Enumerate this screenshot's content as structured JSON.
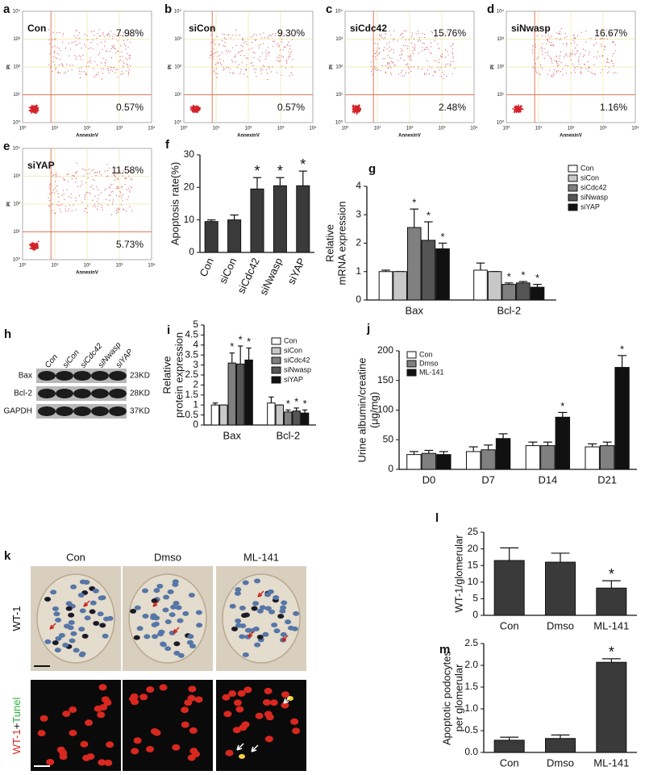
{
  "flow_cytometry": {
    "x_label": "AnnexinV",
    "y_label": "PI",
    "ticks": [
      "10⁰",
      "10¹",
      "10²",
      "10³",
      "10⁴"
    ],
    "panels": [
      {
        "panel": "a",
        "name": "Con",
        "upper_right": "7.98%",
        "lower_right": "0.57%"
      },
      {
        "panel": "b",
        "name": "siCon",
        "upper_right": "9.30%",
        "lower_right": "0.57%"
      },
      {
        "panel": "c",
        "name": "siCdc42",
        "upper_right": "15.76%",
        "lower_right": "2.48%"
      },
      {
        "panel": "d",
        "name": "siNwasp",
        "upper_right": "16.67%",
        "lower_right": "1.16%"
      },
      {
        "panel": "e",
        "name": "siYAP",
        "upper_right": "11.58%",
        "lower_right": "5.73%"
      }
    ]
  },
  "western_blot": {
    "panel": "h",
    "lanes": [
      "Con",
      "siCon",
      "siCdc42",
      "siNwasp",
      "siYAP"
    ],
    "rows": [
      {
        "protein": "Bax",
        "size": "23KD"
      },
      {
        "protein": "Bcl-2",
        "size": "28KD"
      },
      {
        "protein": "GAPDH",
        "size": "37KD"
      }
    ]
  },
  "microscopy": {
    "panel": "k",
    "columns": [
      "Con",
      "Dmso",
      "ML-141"
    ],
    "rows": [
      [
        "WT-1"
      ],
      [
        "WT-1",
        "+",
        "Tunel"
      ]
    ]
  },
  "chart_data": [
    {
      "panel": "f",
      "type": "bar",
      "ylabel": [
        "Apoptosis rate(%)"
      ],
      "categories": [
        "Con",
        "siCon",
        "siCdc42",
        "siNwasp",
        "siYAP"
      ],
      "values": [
        9.5,
        10,
        19.5,
        20.5,
        20.5
      ],
      "errors": [
        0.5,
        1.5,
        3.5,
        2.5,
        4.5
      ],
      "significance": [
        null,
        null,
        "*",
        "*",
        "*"
      ],
      "color": "#3a3a3a",
      "ylim": [
        0,
        30
      ],
      "yticks": [
        0,
        10,
        20,
        30
      ]
    },
    {
      "panel": "g",
      "type": "bar",
      "ylabel": [
        "Relative",
        "mRNA expression"
      ],
      "categories": [
        "Bax",
        "Bcl-2"
      ],
      "legend": "right",
      "series": [
        {
          "name": "Con",
          "color": "#ffffff",
          "values": [
            1.0,
            1.05
          ],
          "errors": [
            0.05,
            0.25
          ],
          "significance": [
            null,
            null
          ]
        },
        {
          "name": "siCon",
          "color": "#c8c8c8",
          "values": [
            1.0,
            1.0
          ],
          "errors": [
            0,
            0
          ],
          "significance": [
            null,
            null
          ]
        },
        {
          "name": "siCdc42",
          "color": "#808080",
          "values": [
            2.55,
            0.55
          ],
          "errors": [
            0.65,
            0.05
          ],
          "significance": [
            "*",
            "*"
          ]
        },
        {
          "name": "siNwasp",
          "color": "#555555",
          "values": [
            2.1,
            0.6
          ],
          "errors": [
            0.65,
            0.05
          ],
          "significance": [
            "*",
            "*"
          ]
        },
        {
          "name": "siYAP",
          "color": "#111111",
          "values": [
            1.8,
            0.45
          ],
          "errors": [
            0.2,
            0.1
          ],
          "significance": [
            "*",
            "*"
          ]
        }
      ],
      "ylim": [
        0,
        4
      ],
      "yticks": [
        0,
        1,
        2,
        3,
        4
      ]
    },
    {
      "panel": "i",
      "type": "bar",
      "ylabel": [
        "Relative",
        "protein expression"
      ],
      "categories": [
        "Bax",
        "Bcl-2"
      ],
      "legend": "upper right",
      "series": [
        {
          "name": "Con",
          "color": "#ffffff",
          "values": [
            1.0,
            1.1
          ],
          "errors": [
            0.1,
            0.3
          ],
          "significance": [
            null,
            null
          ]
        },
        {
          "name": "siCon",
          "color": "#c8c8c8",
          "values": [
            1.0,
            1.0
          ],
          "errors": [
            0,
            0
          ],
          "significance": [
            null,
            null
          ]
        },
        {
          "name": "siCdc42",
          "color": "#808080",
          "values": [
            3.1,
            0.65
          ],
          "errors": [
            0.5,
            0.1
          ],
          "significance": [
            "*",
            "*"
          ]
        },
        {
          "name": "siNwasp",
          "color": "#555555",
          "values": [
            3.05,
            0.7
          ],
          "errors": [
            0.9,
            0.15
          ],
          "significance": [
            "*",
            "*"
          ]
        },
        {
          "name": "siYAP",
          "color": "#111111",
          "values": [
            3.25,
            0.6
          ],
          "errors": [
            0.6,
            0.15
          ],
          "significance": [
            "*",
            "*"
          ]
        }
      ],
      "ylim": [
        0,
        5
      ],
      "yticks": [
        0,
        0.5,
        1,
        1.5,
        2,
        2.5,
        3,
        3.5,
        4,
        4.5,
        5
      ]
    },
    {
      "panel": "j",
      "type": "bar",
      "ylabel": [
        "Urine albumin/creatine",
        "(μg/mg)"
      ],
      "categories": [
        "D0",
        "D7",
        "D14",
        "D21"
      ],
      "legend": "upper left",
      "series": [
        {
          "name": "Con",
          "color": "#ffffff",
          "values": [
            25,
            30,
            40,
            38
          ],
          "errors": [
            5,
            8,
            6,
            5
          ],
          "significance": [
            null,
            null,
            null,
            null
          ]
        },
        {
          "name": "Dmso",
          "color": "#808080",
          "values": [
            27,
            33,
            40,
            40
          ],
          "errors": [
            5,
            8,
            6,
            6
          ],
          "significance": [
            null,
            null,
            null,
            null
          ]
        },
        {
          "name": "ML-141",
          "color": "#111111",
          "values": [
            25,
            52,
            88,
            172
          ],
          "errors": [
            5,
            8,
            8,
            20
          ],
          "significance": [
            null,
            null,
            "*",
            "*"
          ]
        }
      ],
      "ylim": [
        0,
        200
      ],
      "yticks": [
        0,
        50,
        100,
        150,
        200
      ]
    },
    {
      "panel": "l",
      "type": "bar",
      "ylabel": [
        "WT-1/glomerular"
      ],
      "categories": [
        "Con",
        "Dmso",
        "ML-141"
      ],
      "values": [
        16.5,
        16,
        8.2
      ],
      "errors": [
        3.8,
        2.7,
        2.2
      ],
      "significance": [
        null,
        null,
        "*"
      ],
      "color": "#3a3a3a",
      "ylim": [
        0,
        25
      ],
      "yticks": [
        0,
        5,
        10,
        15,
        20,
        25
      ]
    },
    {
      "panel": "m",
      "type": "bar",
      "ylabel": [
        "Apoptotic podocytes",
        "per glomerular"
      ],
      "categories": [
        "Con",
        "Dmso",
        "ML-141"
      ],
      "values": [
        0.28,
        0.32,
        2.07
      ],
      "errors": [
        0.07,
        0.08,
        0.08
      ],
      "significance": [
        null,
        null,
        "*"
      ],
      "color": "#3a3a3a",
      "ylim": [
        0,
        2.5
      ],
      "yticks": [
        {
          "value": 0,
          "label": "0.0"
        },
        0.5,
        {
          "value": 1,
          "label": "1.0"
        },
        1.5,
        {
          "value": 2,
          "label": "2.0"
        },
        2.5
      ]
    }
  ]
}
